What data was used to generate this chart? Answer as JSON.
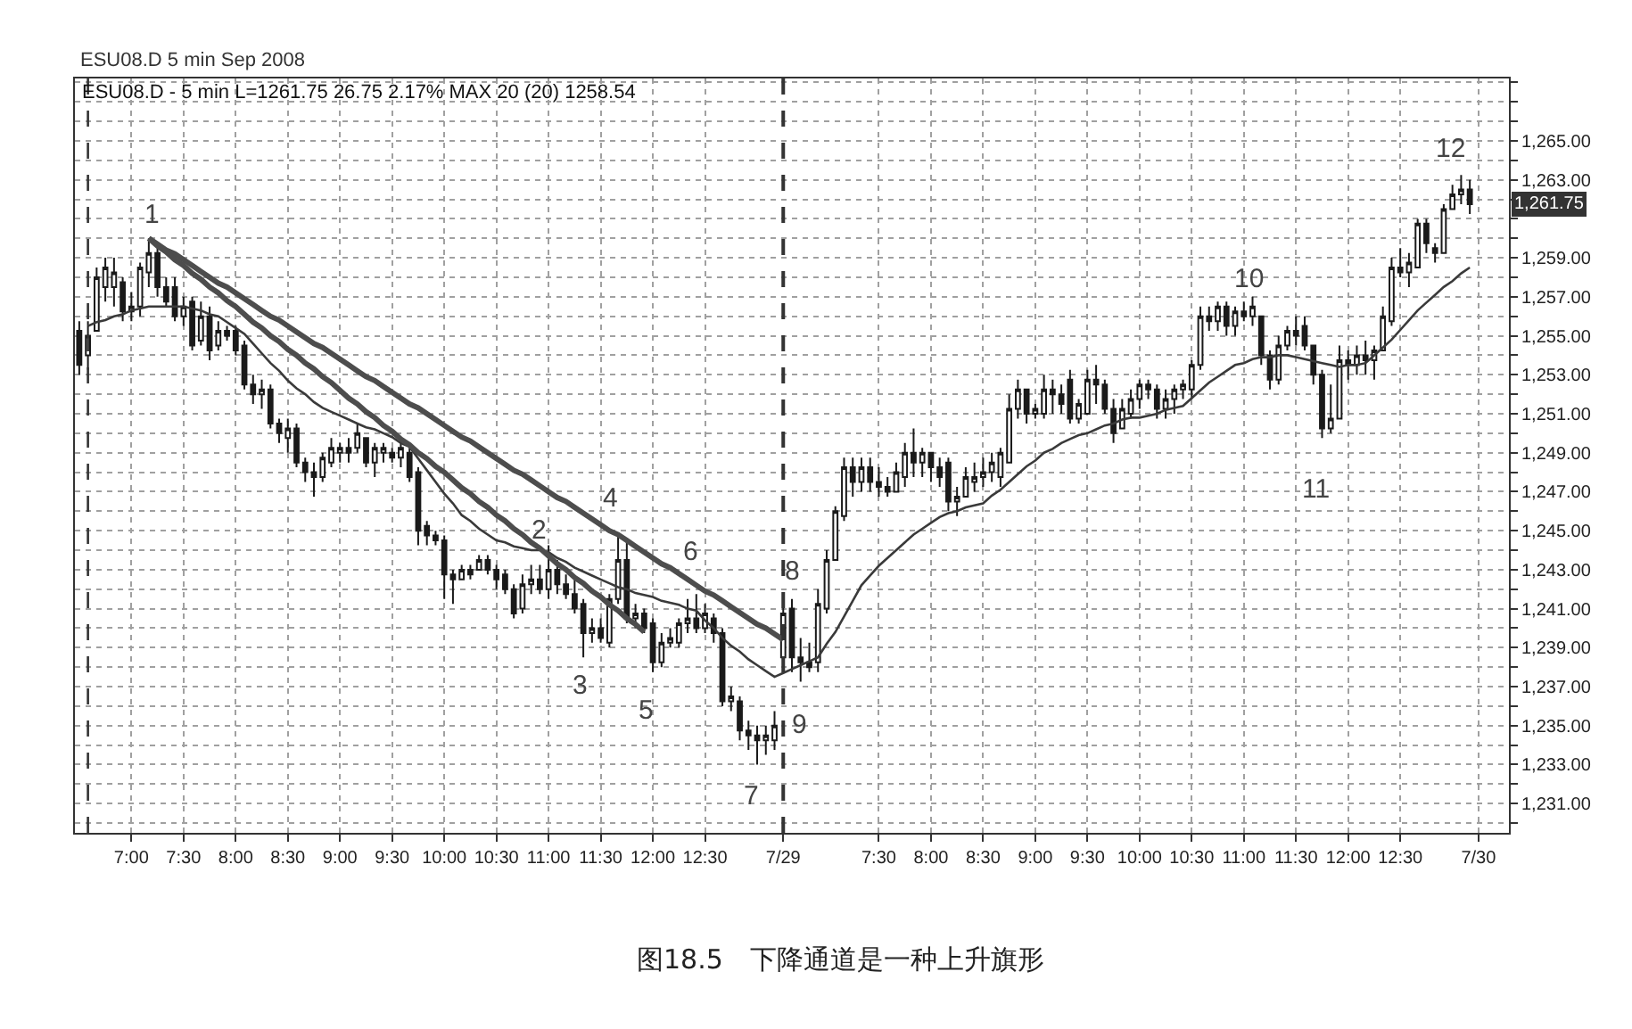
{
  "chart_data": {
    "type": "candlestick",
    "title": "ESU08.D 5 min Sep 2008",
    "subtitle": "ESU08.D - 5 min L=1261.75 26.75 2.17% MAX 20 (20) 1258.54",
    "color": "#1a1a1a",
    "categories": [
      null,
      null,
      null,
      null,
      null,
      null,
      "7:00",
      null,
      null,
      null,
      null,
      null,
      "7:30",
      null,
      null,
      null,
      null,
      null,
      "8:00",
      null,
      null,
      null,
      null,
      null,
      "8:30",
      null,
      null,
      null,
      null,
      null,
      "9:00",
      null,
      null,
      null,
      null,
      null,
      "9:30",
      null,
      null,
      null,
      null,
      null,
      "10:00",
      null,
      null,
      null,
      null,
      null,
      "10:30",
      null,
      null,
      null,
      null,
      null,
      "11:00",
      null,
      null,
      null,
      null,
      null,
      "11:30",
      null,
      null,
      null,
      null,
      null,
      "12:00",
      null,
      null,
      null,
      null,
      null,
      "12:30",
      null,
      null,
      null,
      null,
      null,
      null,
      null,
      null,
      "7/29",
      null,
      null,
      null,
      null,
      null,
      null,
      null,
      null,
      null,
      null,
      "7:30",
      null,
      null,
      null,
      null,
      null,
      "8:00",
      null,
      null,
      null,
      null,
      null,
      "8:30",
      null,
      null,
      null,
      null,
      null,
      "9:00",
      null,
      null,
      null,
      null,
      null,
      "9:30",
      null,
      null,
      null,
      null,
      null,
      "10:00",
      null,
      null,
      null,
      null,
      null,
      "10:30",
      null,
      null,
      null,
      null,
      null,
      "11:00",
      null,
      null,
      null,
      null,
      null,
      "11:30",
      null,
      null,
      null,
      null,
      null,
      "12:00",
      null,
      null,
      null,
      null,
      null,
      "12:30",
      null,
      null,
      null,
      null,
      null,
      null,
      null,
      null,
      "7/30"
    ],
    "ohlc": [
      [
        1255.25,
        1255.75,
        1253.0,
        1253.5
      ],
      [
        1254.0,
        1255.75,
        1253.25,
        1255.0
      ],
      [
        1255.25,
        1258.5,
        1255.25,
        1258.0
      ],
      [
        1257.5,
        1259.0,
        1256.75,
        1258.5
      ],
      [
        1257.5,
        1259.0,
        1256.5,
        1258.25
      ],
      [
        1257.75,
        1258.0,
        1255.75,
        1256.25
      ],
      [
        1256.25,
        1257.25,
        1255.75,
        1256.5
      ],
      [
        1256.5,
        1258.75,
        1256.0,
        1258.5
      ],
      [
        1258.25,
        1260.0,
        1257.5,
        1259.25
      ],
      [
        1259.25,
        1259.5,
        1257.0,
        1257.5
      ],
      [
        1257.5,
        1258.0,
        1256.5,
        1256.75
      ],
      [
        1257.5,
        1258.0,
        1255.75,
        1256.0
      ],
      [
        1256.0,
        1257.0,
        1255.5,
        1256.5
      ],
      [
        1256.75,
        1257.0,
        1254.25,
        1254.5
      ],
      [
        1254.75,
        1256.75,
        1254.5,
        1256.0
      ],
      [
        1256.0,
        1256.5,
        1253.75,
        1254.25
      ],
      [
        1254.5,
        1255.75,
        1254.25,
        1255.25
      ],
      [
        1255.25,
        1255.5,
        1254.75,
        1255.0
      ],
      [
        1255.25,
        1255.5,
        1254.0,
        1254.25
      ],
      [
        1254.5,
        1254.75,
        1252.25,
        1252.5
      ],
      [
        1252.5,
        1253.0,
        1251.5,
        1252.0
      ],
      [
        1252.0,
        1252.75,
        1251.25,
        1252.25
      ],
      [
        1252.25,
        1252.5,
        1250.25,
        1250.5
      ],
      [
        1250.5,
        1250.75,
        1249.5,
        1250.0
      ],
      [
        1249.75,
        1250.75,
        1249.0,
        1250.25
      ],
      [
        1250.25,
        1250.5,
        1248.25,
        1248.5
      ],
      [
        1248.5,
        1248.75,
        1247.5,
        1248.0
      ],
      [
        1248.0,
        1248.5,
        1246.75,
        1247.75
      ],
      [
        1247.75,
        1249.0,
        1247.5,
        1248.75
      ],
      [
        1248.5,
        1249.75,
        1248.25,
        1249.25
      ],
      [
        1249.0,
        1249.5,
        1248.5,
        1249.25
      ],
      [
        1249.25,
        1249.75,
        1248.5,
        1249.0
      ],
      [
        1249.25,
        1250.5,
        1249.0,
        1250.0
      ],
      [
        1249.75,
        1249.75,
        1248.25,
        1248.5
      ],
      [
        1248.5,
        1249.5,
        1247.75,
        1249.25
      ],
      [
        1249.0,
        1249.5,
        1248.5,
        1249.25
      ],
      [
        1249.0,
        1249.25,
        1248.5,
        1248.75
      ],
      [
        1248.75,
        1249.75,
        1248.25,
        1249.25
      ],
      [
        1249.0,
        1249.25,
        1247.5,
        1247.75
      ],
      [
        1248.0,
        1248.25,
        1244.25,
        1245.0
      ],
      [
        1245.25,
        1245.5,
        1244.25,
        1244.75
      ],
      [
        1244.75,
        1245.0,
        1244.25,
        1244.5
      ],
      [
        1244.5,
        1244.75,
        1241.5,
        1242.75
      ],
      [
        1242.75,
        1243.0,
        1241.25,
        1242.5
      ],
      [
        1242.5,
        1243.25,
        1242.5,
        1243.0
      ],
      [
        1243.0,
        1243.25,
        1242.5,
        1242.75
      ],
      [
        1243.0,
        1243.75,
        1243.0,
        1243.5
      ],
      [
        1243.5,
        1243.75,
        1242.75,
        1243.0
      ],
      [
        1243.0,
        1243.25,
        1242.0,
        1242.5
      ],
      [
        1242.75,
        1243.0,
        1241.75,
        1242.0
      ],
      [
        1242.0,
        1242.25,
        1240.5,
        1240.75
      ],
      [
        1241.0,
        1242.75,
        1240.75,
        1242.25
      ],
      [
        1242.25,
        1243.25,
        1241.75,
        1242.5
      ],
      [
        1242.5,
        1243.25,
        1241.75,
        1242.0
      ],
      [
        1242.0,
        1244.25,
        1241.5,
        1243.0
      ],
      [
        1243.0,
        1243.5,
        1241.75,
        1242.25
      ],
      [
        1242.25,
        1242.75,
        1241.5,
        1241.75
      ],
      [
        1241.75,
        1242.5,
        1240.75,
        1241.0
      ],
      [
        1241.25,
        1241.5,
        1238.5,
        1239.75
      ],
      [
        1239.75,
        1240.5,
        1239.25,
        1240.0
      ],
      [
        1240.0,
        1240.5,
        1239.25,
        1239.5
      ],
      [
        1239.25,
        1241.75,
        1239.0,
        1241.5
      ],
      [
        1241.5,
        1244.75,
        1241.25,
        1243.5
      ],
      [
        1243.5,
        1244.5,
        1240.25,
        1240.5
      ],
      [
        1240.5,
        1241.25,
        1240.0,
        1240.75
      ],
      [
        1240.75,
        1241.0,
        1239.75,
        1240.0
      ],
      [
        1240.25,
        1240.5,
        1237.75,
        1238.25
      ],
      [
        1238.25,
        1239.75,
        1238.0,
        1239.25
      ],
      [
        1239.25,
        1240.0,
        1239.0,
        1239.5
      ],
      [
        1239.25,
        1240.5,
        1239.0,
        1240.25
      ],
      [
        1240.25,
        1241.5,
        1239.75,
        1240.5
      ],
      [
        1240.5,
        1241.75,
        1239.75,
        1240.0
      ],
      [
        1240.0,
        1241.25,
        1239.75,
        1240.75
      ],
      [
        1240.5,
        1240.75,
        1239.25,
        1239.75
      ],
      [
        1239.75,
        1240.0,
        1236.0,
        1236.25
      ],
      [
        1236.25,
        1237.0,
        1235.75,
        1236.5
      ],
      [
        1236.25,
        1236.5,
        1234.25,
        1234.75
      ],
      [
        1234.75,
        1235.25,
        1233.75,
        1234.5
      ],
      [
        1234.5,
        1235.0,
        1233.0,
        1234.25
      ],
      [
        1234.25,
        1235.0,
        1233.5,
        1234.5
      ],
      [
        1234.25,
        1235.75,
        1233.75,
        1235.0
      ],
      [
        1238.5,
        1241.75,
        1238.0,
        1240.75
      ],
      [
        1241.0,
        1241.5,
        1237.75,
        1238.5
      ],
      [
        1238.5,
        1239.5,
        1237.25,
        1238.25
      ],
      [
        1238.25,
        1239.25,
        1237.75,
        1238.0
      ],
      [
        1238.25,
        1242.0,
        1237.75,
        1241.25
      ],
      [
        1241.0,
        1244.0,
        1240.75,
        1243.5
      ],
      [
        1243.5,
        1246.25,
        1243.5,
        1246.0
      ],
      [
        1245.75,
        1248.75,
        1245.5,
        1248.25
      ],
      [
        1248.25,
        1248.75,
        1246.75,
        1247.5
      ],
      [
        1247.5,
        1248.75,
        1247.0,
        1248.25
      ],
      [
        1248.25,
        1248.75,
        1247.0,
        1247.5
      ],
      [
        1247.5,
        1248.25,
        1246.75,
        1247.25
      ],
      [
        1247.25,
        1247.75,
        1246.75,
        1247.0
      ],
      [
        1247.0,
        1248.5,
        1247.0,
        1248.0
      ],
      [
        1247.75,
        1249.5,
        1247.25,
        1249.0
      ],
      [
        1249.0,
        1250.25,
        1247.75,
        1248.5
      ],
      [
        1248.5,
        1249.25,
        1247.75,
        1249.0
      ],
      [
        1249.0,
        1249.0,
        1247.5,
        1248.25
      ],
      [
        1248.25,
        1248.75,
        1247.25,
        1247.75
      ],
      [
        1248.5,
        1248.75,
        1246.0,
        1246.5
      ],
      [
        1246.5,
        1247.25,
        1245.75,
        1246.75
      ],
      [
        1246.75,
        1248.25,
        1246.75,
        1247.75
      ],
      [
        1247.5,
        1248.5,
        1247.0,
        1247.75
      ],
      [
        1247.75,
        1248.75,
        1247.25,
        1248.0
      ],
      [
        1248.0,
        1249.0,
        1247.5,
        1248.5
      ],
      [
        1247.75,
        1249.25,
        1247.25,
        1249.0
      ],
      [
        1248.5,
        1252.0,
        1248.5,
        1251.25
      ],
      [
        1251.25,
        1252.75,
        1250.75,
        1252.25
      ],
      [
        1252.25,
        1252.25,
        1250.5,
        1251.0
      ],
      [
        1251.0,
        1251.5,
        1250.75,
        1251.25
      ],
      [
        1251.0,
        1253.0,
        1250.75,
        1252.25
      ],
      [
        1252.25,
        1252.75,
        1251.0,
        1252.0
      ],
      [
        1252.0,
        1252.5,
        1251.0,
        1251.5
      ],
      [
        1252.75,
        1253.25,
        1250.5,
        1250.75
      ],
      [
        1250.75,
        1251.75,
        1250.5,
        1251.5
      ],
      [
        1251.0,
        1253.25,
        1251.0,
        1252.75
      ],
      [
        1252.75,
        1253.5,
        1251.5,
        1252.5
      ],
      [
        1252.5,
        1252.75,
        1251.0,
        1251.25
      ],
      [
        1251.25,
        1251.75,
        1249.5,
        1250.0
      ],
      [
        1250.25,
        1251.75,
        1250.25,
        1251.25
      ],
      [
        1251.0,
        1252.25,
        1250.75,
        1251.75
      ],
      [
        1251.75,
        1252.75,
        1251.25,
        1252.5
      ],
      [
        1252.5,
        1252.75,
        1251.75,
        1252.25
      ],
      [
        1252.25,
        1252.5,
        1250.75,
        1251.25
      ],
      [
        1251.25,
        1252.25,
        1250.75,
        1251.75
      ],
      [
        1251.75,
        1252.5,
        1251.0,
        1252.25
      ],
      [
        1252.25,
        1252.75,
        1251.75,
        1252.5
      ],
      [
        1252.25,
        1253.75,
        1251.75,
        1253.5
      ],
      [
        1253.5,
        1256.5,
        1253.25,
        1256.0
      ],
      [
        1256.0,
        1256.5,
        1255.25,
        1255.75
      ],
      [
        1255.75,
        1256.75,
        1255.25,
        1256.5
      ],
      [
        1256.5,
        1256.75,
        1255.0,
        1255.5
      ],
      [
        1255.5,
        1256.5,
        1255.0,
        1256.25
      ],
      [
        1256.25,
        1256.75,
        1255.75,
        1256.0
      ],
      [
        1256.0,
        1257.0,
        1255.5,
        1256.5
      ],
      [
        1256.0,
        1256.0,
        1253.5,
        1254.0
      ],
      [
        1254.0,
        1254.25,
        1252.25,
        1252.75
      ],
      [
        1252.75,
        1255.0,
        1252.5,
        1254.5
      ],
      [
        1254.5,
        1255.5,
        1254.25,
        1255.25
      ],
      [
        1255.25,
        1256.0,
        1254.5,
        1255.0
      ],
      [
        1255.5,
        1256.0,
        1254.25,
        1254.5
      ],
      [
        1254.5,
        1254.5,
        1252.5,
        1253.0
      ],
      [
        1253.0,
        1253.25,
        1249.75,
        1250.25
      ],
      [
        1250.25,
        1252.5,
        1250.0,
        1250.75
      ],
      [
        1250.75,
        1254.5,
        1250.75,
        1253.75
      ],
      [
        1253.75,
        1254.25,
        1252.75,
        1253.5
      ],
      [
        1253.5,
        1254.5,
        1253.0,
        1254.0
      ],
      [
        1254.0,
        1254.75,
        1253.0,
        1253.75
      ],
      [
        1253.75,
        1254.5,
        1252.75,
        1254.25
      ],
      [
        1254.25,
        1256.5,
        1254.25,
        1256.0
      ],
      [
        1255.75,
        1259.0,
        1255.5,
        1258.5
      ],
      [
        1258.5,
        1259.5,
        1258.0,
        1258.25
      ],
      [
        1258.25,
        1259.25,
        1257.5,
        1258.75
      ],
      [
        1258.5,
        1261.0,
        1258.5,
        1260.75
      ],
      [
        1260.75,
        1261.0,
        1259.25,
        1259.75
      ],
      [
        1259.5,
        1259.75,
        1258.75,
        1259.25
      ],
      [
        1259.25,
        1261.75,
        1259.25,
        1261.5
      ],
      [
        1261.5,
        1262.75,
        1261.5,
        1262.25
      ],
      [
        1262.25,
        1263.25,
        1261.75,
        1262.5
      ],
      [
        1262.5,
        1263.0,
        1261.25,
        1261.75
      ],
      null
    ],
    "series": [
      {
        "type": "line",
        "color": "#3a3a3a",
        "values": [
          null,
          1255.5,
          1255.7,
          1255.8,
          1256.0,
          1256.1,
          1256.3,
          1256.4,
          1256.5,
          1256.5,
          1256.5,
          1256.5,
          1256.5,
          1256.4,
          1256.3,
          1256.1,
          1256.0,
          1255.7,
          1255.4,
          1255.1,
          1254.6,
          1254.1,
          1253.6,
          1253.2,
          1252.7,
          1252.3,
          1252.0,
          1251.6,
          1251.3,
          1251.1,
          1250.9,
          1250.7,
          1250.5,
          1250.3,
          1250.2,
          1250.0,
          1249.8,
          1249.5,
          1249.3,
          1248.7,
          1248.1,
          1247.5,
          1246.9,
          1246.4,
          1245.8,
          1245.5,
          1245.1,
          1244.8,
          1244.5,
          1244.4,
          1244.2,
          1244.1,
          1244.0,
          1244.0,
          1243.9,
          1243.6,
          1243.4,
          1243.1,
          1242.9,
          1242.7,
          1242.5,
          1242.3,
          1242.1,
          1242.0,
          1241.8,
          1241.7,
          1241.6,
          1241.4,
          1241.3,
          1241.2,
          1241.0,
          1240.9,
          1240.4,
          1240.0,
          1239.5,
          1239.1,
          1238.8,
          1238.4,
          1238.1,
          1237.8,
          1237.5,
          1237.7,
          1237.9,
          1238.1,
          1238.3,
          1238.5,
          1239.2,
          1239.8,
          1240.6,
          1241.4,
          1242.2,
          1242.7,
          1243.2,
          1243.6,
          1244.0,
          1244.4,
          1244.8,
          1245.1,
          1245.4,
          1245.7,
          1245.9,
          1246.0,
          1246.2,
          1246.3,
          1246.4,
          1246.8,
          1247.1,
          1247.5,
          1247.9,
          1248.3,
          1248.6,
          1249.0,
          1249.2,
          1249.5,
          1249.7,
          1249.9,
          1250.0,
          1250.2,
          1250.4,
          1250.5,
          1250.7,
          1250.8,
          1250.8,
          1250.9,
          1251.0,
          1251.2,
          1251.3,
          1251.4,
          1251.8,
          1252.2,
          1252.6,
          1252.9,
          1253.2,
          1253.5,
          1253.6,
          1253.8,
          1253.9,
          1253.9,
          1254.0,
          1254.0,
          1253.9,
          1253.8,
          1253.7,
          1253.6,
          1253.5,
          1253.4,
          1253.5,
          1253.5,
          1253.6,
          1254.0,
          1254.4,
          1254.8,
          1255.3,
          1255.8,
          1256.3,
          1256.7,
          1257.1,
          1257.5,
          1257.8,
          1258.2,
          1258.5,
          null
        ]
      },
      {
        "type": "line",
        "color": "#4d4d4d",
        "values": [
          null,
          null,
          null,
          null,
          null,
          null,
          null,
          null,
          1260.0,
          1259.7,
          1259.4,
          1259.2,
          1258.9,
          1258.6,
          1258.3,
          1258.0,
          1257.7,
          1257.5,
          1257.2,
          1256.9,
          1256.6,
          1256.3,
          1256.0,
          1255.8,
          1255.5,
          1255.2,
          1254.9,
          1254.6,
          1254.4,
          1254.1,
          1253.8,
          1253.5,
          1253.2,
          1252.9,
          1252.7,
          1252.4,
          1252.1,
          1251.8,
          1251.5,
          1251.3,
          1251.0,
          1250.7,
          1250.4,
          1250.1,
          1249.8,
          1249.6,
          1249.3,
          1249.0,
          1248.7,
          1248.4,
          1248.1,
          1247.9,
          1247.6,
          1247.3,
          1247.0,
          1246.7,
          1246.5,
          1246.2,
          1245.9,
          1245.6,
          1245.3,
          1245.0,
          1244.8,
          1244.5,
          1244.2,
          1243.9,
          1243.6,
          1243.3,
          1243.1,
          1242.8,
          1242.5,
          1242.2,
          1241.9,
          1241.7,
          1241.4,
          1241.1,
          1240.8,
          1240.5,
          1240.2,
          1240.0,
          1239.7,
          1239.4,
          null,
          null,
          null,
          null,
          null,
          null,
          null,
          null,
          null,
          null,
          null,
          null,
          null,
          null,
          null,
          null,
          null,
          null,
          null,
          null,
          null,
          null,
          null,
          null,
          null,
          null,
          null,
          null,
          null,
          null,
          null,
          null,
          null,
          null,
          null,
          null,
          null,
          null,
          null,
          null,
          null,
          null,
          null,
          null,
          null,
          null,
          null,
          null,
          null,
          null,
          null,
          null,
          null,
          null,
          null,
          null,
          null,
          null,
          null,
          null,
          null,
          null,
          null,
          null,
          null,
          null,
          null,
          null,
          null,
          null,
          null,
          null,
          null,
          null,
          null,
          null,
          null,
          null,
          null,
          null
        ]
      },
      {
        "type": "line",
        "color": "#4d4d4d",
        "values": [
          null,
          null,
          null,
          null,
          null,
          null,
          null,
          null,
          1260.0,
          1259.6,
          1259.3,
          1258.9,
          1258.6,
          1258.2,
          1257.9,
          1257.5,
          1257.2,
          1256.8,
          1256.5,
          1256.1,
          1255.7,
          1255.4,
          1255.0,
          1254.7,
          1254.3,
          1254.0,
          1253.6,
          1253.3,
          1252.9,
          1252.6,
          1252.2,
          1251.8,
          1251.5,
          1251.1,
          1250.8,
          1250.4,
          1250.1,
          1249.7,
          1249.4,
          1249.0,
          1248.7,
          1248.3,
          1248.0,
          1247.6,
          1247.2,
          1246.9,
          1246.5,
          1246.2,
          1245.8,
          1245.5,
          1245.1,
          1244.8,
          1244.4,
          1244.1,
          1243.7,
          1243.3,
          1243.0,
          1242.6,
          1242.3,
          1241.9,
          1241.6,
          1241.2,
          1240.9,
          1240.5,
          1240.2,
          1239.8,
          null,
          null,
          null,
          null,
          null,
          null,
          null,
          null,
          null,
          null,
          null,
          null,
          null,
          null,
          null,
          null,
          null,
          null,
          null,
          null,
          null,
          null,
          null,
          null,
          null,
          null,
          null,
          null,
          null,
          null,
          null,
          null,
          null,
          null,
          null,
          null,
          null,
          null,
          null,
          null,
          null,
          null,
          null,
          null,
          null,
          null,
          null,
          null,
          null,
          null,
          null,
          null,
          null,
          null,
          null,
          null,
          null,
          null,
          null,
          null,
          null,
          null,
          null,
          null,
          null,
          null,
          null,
          null,
          null,
          null,
          null,
          null,
          null,
          null,
          null,
          null,
          null,
          null,
          null,
          null,
          null,
          null,
          null,
          null,
          null,
          null,
          null,
          null,
          null,
          null,
          null,
          null,
          null,
          null,
          null,
          null
        ]
      }
    ],
    "ylim": [
      1229.5,
      1268.2
    ],
    "yticks": [
      {
        "value": 1230,
        "label": null
      },
      {
        "value": 1231,
        "label": "1,231.00"
      },
      {
        "value": 1232,
        "label": null
      },
      {
        "value": 1233,
        "label": "1,233.00"
      },
      {
        "value": 1234,
        "label": null
      },
      {
        "value": 1235,
        "label": "1,235.00"
      },
      {
        "value": 1236,
        "label": null
      },
      {
        "value": 1237,
        "label": "1,237.00"
      },
      {
        "value": 1238,
        "label": null
      },
      {
        "value": 1239,
        "label": "1,239.00"
      },
      {
        "value": 1240,
        "label": null
      },
      {
        "value": 1241,
        "label": "1,241.00"
      },
      {
        "value": 1242,
        "label": null
      },
      {
        "value": 1243,
        "label": "1,243.00"
      },
      {
        "value": 1244,
        "label": null
      },
      {
        "value": 1245,
        "label": "1,245.00"
      },
      {
        "value": 1246,
        "label": null
      },
      {
        "value": 1247,
        "label": "1,247.00"
      },
      {
        "value": 1248,
        "label": null
      },
      {
        "value": 1249,
        "label": "1,249.00"
      },
      {
        "value": 1250,
        "label": null
      },
      {
        "value": 1251,
        "label": "1,251.00"
      },
      {
        "value": 1252,
        "label": null
      },
      {
        "value": 1253,
        "label": "1,253.00"
      },
      {
        "value": 1254,
        "label": null
      },
      {
        "value": 1255,
        "label": "1,255.00"
      },
      {
        "value": 1256,
        "label": null
      },
      {
        "value": 1257,
        "label": "1,257.00"
      },
      {
        "value": 1258,
        "label": null
      },
      {
        "value": 1259,
        "label": "1,259.00"
      },
      {
        "value": 1260,
        "label": null
      },
      {
        "value": 1261,
        "label": null
      },
      {
        "value": 1262,
        "label": null
      },
      {
        "value": 1263,
        "label": "1,263.00"
      },
      {
        "value": 1264,
        "label": null
      },
      {
        "value": 1265,
        "label": "1,265.00"
      },
      {
        "value": 1266,
        "label": null
      },
      {
        "value": 1267,
        "label": null
      },
      {
        "value": 1268,
        "label": null
      }
    ],
    "grid": true,
    "ref_lines": [
      {
        "axis": "x",
        "value": "7/29",
        "color": "#333333",
        "line_style": "dashed"
      }
    ],
    "annotations": [
      "1",
      "2",
      "3",
      "4",
      "5",
      "6",
      "7",
      "8",
      "9",
      "10",
      "11",
      "12",
      "1,261.75",
      "图18.5　下降通道是一种上升旗形"
    ]
  }
}
